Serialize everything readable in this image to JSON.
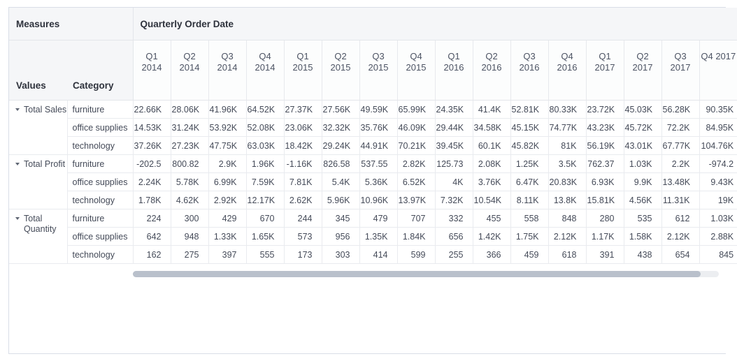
{
  "table": {
    "measures_label": "Measures",
    "column_group_label": "Quarterly Order Date",
    "values_header": "Values",
    "category_header": "Category",
    "quarter_columns": [
      {
        "quarter": "Q1",
        "year": "2014"
      },
      {
        "quarter": "Q2",
        "year": "2014"
      },
      {
        "quarter": "Q3",
        "year": "2014"
      },
      {
        "quarter": "Q4",
        "year": "2014"
      },
      {
        "quarter": "Q1",
        "year": "2015"
      },
      {
        "quarter": "Q2",
        "year": "2015"
      },
      {
        "quarter": "Q3",
        "year": "2015"
      },
      {
        "quarter": "Q4",
        "year": "2015"
      },
      {
        "quarter": "Q1",
        "year": "2016"
      },
      {
        "quarter": "Q2",
        "year": "2016"
      },
      {
        "quarter": "Q3",
        "year": "2016"
      },
      {
        "quarter": "Q4",
        "year": "2016"
      },
      {
        "quarter": "Q1",
        "year": "2017"
      },
      {
        "quarter": "Q2",
        "year": "2017"
      },
      {
        "quarter": "Q3",
        "year": "2017"
      },
      {
        "quarter": "Q4",
        "year": "2017",
        "clipped": true
      }
    ],
    "measure_groups": [
      {
        "measure": "Total Sales",
        "rows": [
          {
            "category": "furniture",
            "values": [
              "22.66K",
              "28.06K",
              "41.96K",
              "64.52K",
              "27.37K",
              "27.56K",
              "49.59K",
              "65.99K",
              "24.35K",
              "41.4K",
              "52.81K",
              "80.33K",
              "23.72K",
              "45.03K",
              "56.28K",
              "90.35K"
            ]
          },
          {
            "category": "office supplies",
            "values": [
              "14.53K",
              "31.24K",
              "53.92K",
              "52.08K",
              "23.06K",
              "32.32K",
              "35.76K",
              "46.09K",
              "29.44K",
              "34.58K",
              "45.15K",
              "74.77K",
              "43.23K",
              "45.72K",
              "72.2K",
              "84.95K"
            ]
          },
          {
            "category": "technology",
            "values": [
              "37.26K",
              "27.23K",
              "47.75K",
              "63.03K",
              "18.42K",
              "29.24K",
              "44.91K",
              "70.21K",
              "39.45K",
              "60.1K",
              "45.82K",
              "81K",
              "56.19K",
              "43.01K",
              "67.77K",
              "104.76K"
            ]
          }
        ]
      },
      {
        "measure": "Total Profit",
        "rows": [
          {
            "category": "furniture",
            "values": [
              "-202.5",
              "800.82",
              "2.9K",
              "1.96K",
              "-1.16K",
              "826.58",
              "537.55",
              "2.82K",
              "125.73",
              "2.08K",
              "1.25K",
              "3.5K",
              "762.37",
              "1.03K",
              "2.2K",
              "-974.2"
            ]
          },
          {
            "category": "office supplies",
            "values": [
              "2.24K",
              "5.78K",
              "6.99K",
              "7.59K",
              "7.81K",
              "5.4K",
              "5.36K",
              "6.52K",
              "4K",
              "3.76K",
              "6.47K",
              "20.83K",
              "6.93K",
              "9.9K",
              "13.48K",
              "9.43K"
            ]
          },
          {
            "category": "technology",
            "values": [
              "1.78K",
              "4.62K",
              "2.92K",
              "12.17K",
              "2.62K",
              "5.96K",
              "10.96K",
              "13.97K",
              "7.32K",
              "10.54K",
              "8.11K",
              "13.8K",
              "15.81K",
              "4.56K",
              "11.31K",
              "19K"
            ]
          }
        ]
      },
      {
        "measure": "Total Quantity",
        "rows": [
          {
            "category": "furniture",
            "values": [
              "224",
              "300",
              "429",
              "670",
              "244",
              "345",
              "479",
              "707",
              "332",
              "455",
              "558",
              "848",
              "280",
              "535",
              "612",
              "1.03K"
            ]
          },
          {
            "category": "office supplies",
            "values": [
              "642",
              "948",
              "1.33K",
              "1.65K",
              "573",
              "956",
              "1.35K",
              "1.84K",
              "656",
              "1.42K",
              "1.75K",
              "2.12K",
              "1.17K",
              "1.58K",
              "2.12K",
              "2.88K"
            ]
          },
          {
            "category": "technology",
            "values": [
              "162",
              "275",
              "397",
              "555",
              "173",
              "303",
              "414",
              "599",
              "255",
              "366",
              "459",
              "618",
              "391",
              "438",
              "654",
              "845"
            ]
          }
        ]
      }
    ]
  },
  "icons": {
    "measure_collapse_caret": "caret-down"
  },
  "colors": {
    "header_background": "#f5f6f8",
    "header_border": "#e3e6ea",
    "grid_border": "#e9ebef",
    "panel_border": "#d9dee7",
    "header_text": "#2e323c",
    "body_text": "#454b59",
    "scrollbar_thumb": "#b9c0cb",
    "scrollbar_track": "#eceef1"
  }
}
